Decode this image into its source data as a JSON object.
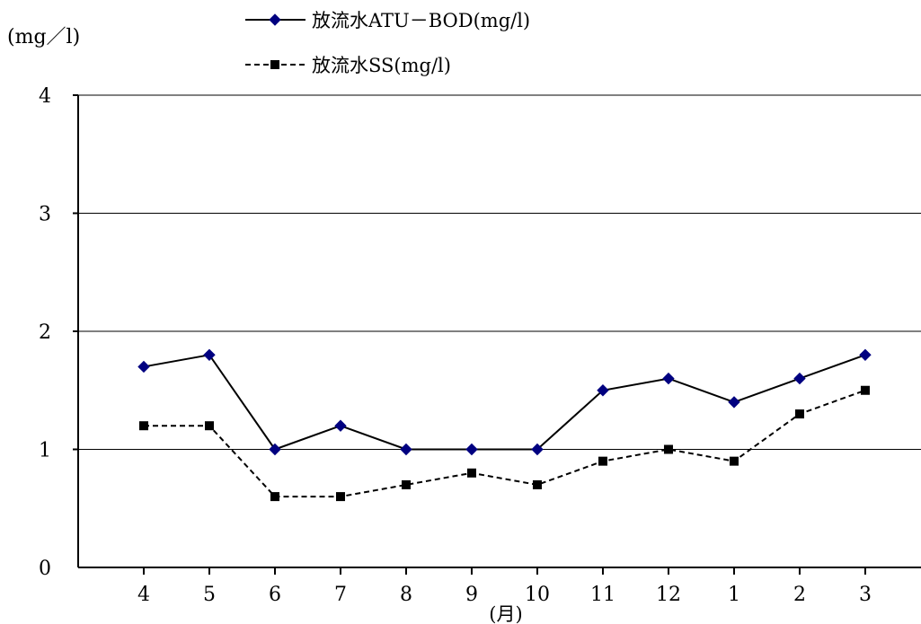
{
  "chart_data": {
    "type": "line",
    "y_unit_label": "(mg／l)",
    "xlabel": "(月)",
    "categories": [
      "4",
      "5",
      "6",
      "7",
      "8",
      "9",
      "10",
      "11",
      "12",
      "1",
      "2",
      "3"
    ],
    "ylim": [
      0,
      4
    ],
    "yticks": [
      "0",
      "1",
      "2",
      "3",
      "4"
    ],
    "grid": "horizontal",
    "legend_position": "top",
    "series": [
      {
        "name": "放流水ATU－BOD(mg/l)",
        "color": "#000080",
        "marker": "diamond",
        "line_style": "solid",
        "values": [
          1.7,
          1.8,
          1.0,
          1.2,
          1.0,
          1.0,
          1.0,
          1.5,
          1.6,
          1.4,
          1.6,
          1.8
        ]
      },
      {
        "name": "放流水SS(mg/l)",
        "color": "#000000",
        "marker": "square",
        "line_style": "dashed",
        "values": [
          1.2,
          1.2,
          0.6,
          0.6,
          0.7,
          0.8,
          0.7,
          0.9,
          1.0,
          0.9,
          1.3,
          1.5
        ]
      }
    ]
  }
}
